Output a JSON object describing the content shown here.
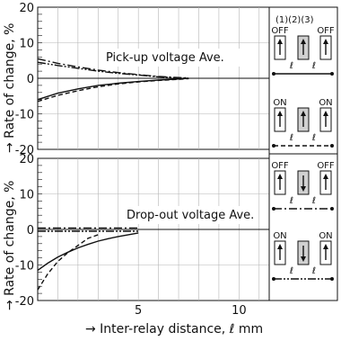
{
  "chart_data": [
    {
      "type": "line",
      "annotation": "Pick-up voltage Ave.",
      "ylabel": "→ Rate of change, %",
      "xlim": [
        0,
        11.5
      ],
      "ylim": [
        -20,
        20
      ],
      "yticks": [
        "20",
        "10",
        "0",
        "-10",
        "-20"
      ],
      "grid": true,
      "series": [
        {
          "style": "solid",
          "x": [
            0,
            1,
            2,
            3,
            4,
            5,
            6,
            7,
            7.5
          ],
          "y": [
            -6,
            -4.2,
            -3,
            -2,
            -1.4,
            -0.9,
            -0.5,
            -0.2,
            0
          ]
        },
        {
          "style": "dashed",
          "x": [
            0,
            1,
            2,
            3,
            4,
            5,
            6,
            7,
            7.5
          ],
          "y": [
            -6.5,
            -4.8,
            -3.5,
            -2.4,
            -1.6,
            -1,
            -0.6,
            -0.3,
            -0.1
          ]
        },
        {
          "style": "dash-dot",
          "x": [
            0,
            1,
            2,
            3,
            4,
            5,
            6,
            7,
            7.5
          ],
          "y": [
            5.5,
            4.2,
            3.2,
            2.3,
            1.6,
            1,
            0.5,
            0.2,
            0.1
          ]
        },
        {
          "style": "dash-dot-dot",
          "x": [
            0,
            1,
            2,
            3,
            4,
            5,
            6,
            7,
            7.5
          ],
          "y": [
            4.5,
            3.6,
            2.8,
            2,
            1.4,
            0.9,
            0.4,
            0.1,
            0
          ]
        }
      ]
    },
    {
      "type": "line",
      "annotation": "Drop-out voltage Ave.",
      "ylabel": "→ Rate of change, %",
      "xlabel": "→ Inter-relay distance, ℓ mm",
      "xlim": [
        0,
        11.5
      ],
      "ylim": [
        -20,
        20
      ],
      "xticks": [
        "5",
        "10"
      ],
      "yticks": [
        "20",
        "10",
        "0",
        "-10",
        "-20"
      ],
      "grid": true,
      "series": [
        {
          "style": "solid",
          "x": [
            0,
            0.5,
            1,
            1.5,
            2,
            2.5,
            3,
            3.5,
            4,
            4.5,
            5
          ],
          "y": [
            -11.5,
            -9.5,
            -7.8,
            -6.4,
            -5.2,
            -4.2,
            -3.3,
            -2.6,
            -2,
            -1.5,
            -1
          ]
        },
        {
          "style": "dashed",
          "x": [
            0,
            0.5,
            1,
            1.5,
            2,
            2.5,
            3
          ],
          "y": [
            -17,
            -12.5,
            -9,
            -6.5,
            -4.5,
            -2.5,
            -1.5
          ]
        },
        {
          "style": "dash-dot",
          "x": [
            0,
            1,
            2,
            3,
            4,
            5
          ],
          "y": [
            0.4,
            0.4,
            0.4,
            0.4,
            0.4,
            0.4
          ]
        },
        {
          "style": "dash-dot-dot",
          "x": [
            0,
            1,
            2,
            3,
            4,
            5
          ],
          "y": [
            -0.5,
            -0.5,
            -0.5,
            -0.5,
            -0.5,
            -0.5
          ]
        }
      ]
    }
  ],
  "legend_panel": {
    "header": "(1)(2)(3)",
    "off_label": "OFF",
    "on_label": "ON",
    "ell": "ℓ"
  }
}
